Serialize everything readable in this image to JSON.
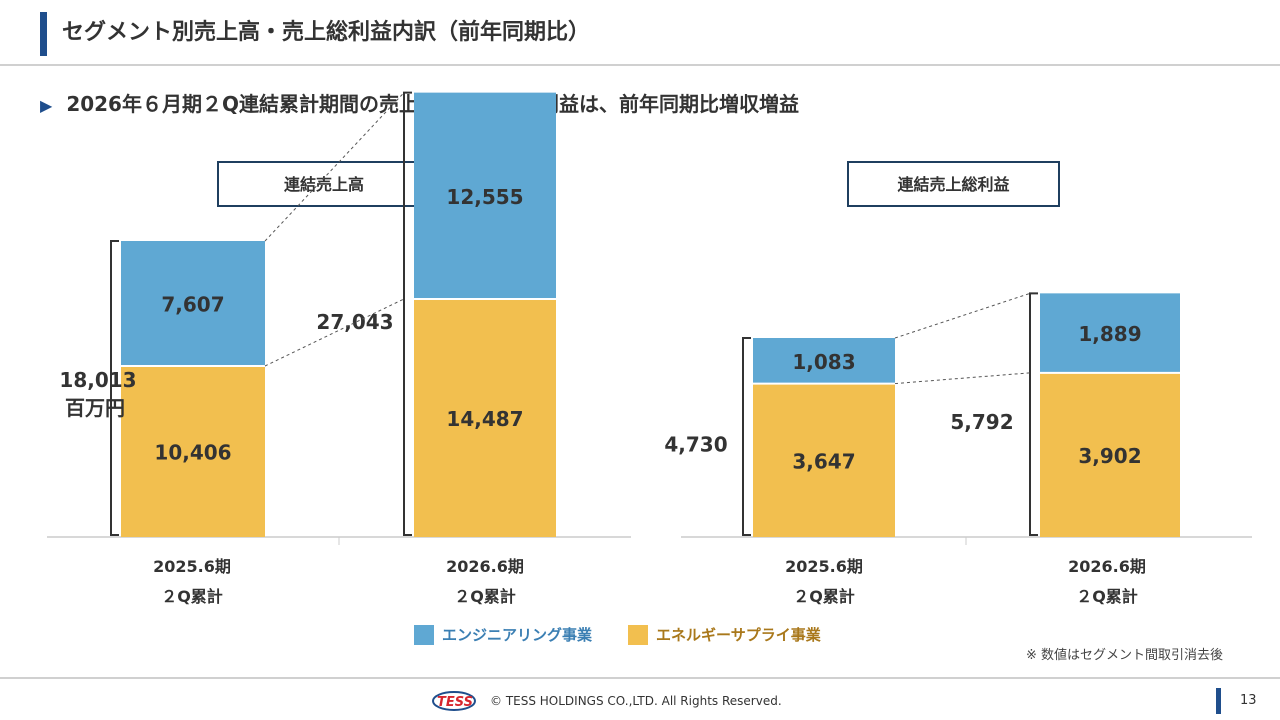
{
  "header": {
    "title": "セグメント別売上高・売上総利益内訳（前年同期比）",
    "subtitle": "2026年６月期２Q連結累計期間の売上高及び売上総利益は、前年同期比増収増益"
  },
  "colors": {
    "engineering": "#5fa8d3",
    "energy": "#f2bf4f",
    "brand": "#1f4e8c",
    "box_border": "#1f3f5f"
  },
  "legend": {
    "engineering": "エンジニアリング事業",
    "energy": "エネルギーサプライ事業"
  },
  "note": "※ 数値はセグメント間取引消去後",
  "footer": {
    "logo_text": "TESS",
    "copyright": "© TESS HOLDINGS CO.,LTD. All Rights Reserved.",
    "page_number": "13"
  },
  "chart_data": [
    {
      "type": "bar",
      "stacked": true,
      "title": "連結売上高",
      "categories": [
        "2025.6期\n２Q累計",
        "2026.6期\n２Q累計"
      ],
      "series": [
        {
          "name": "エネルギーサプライ事業",
          "values": [
            10406,
            14487
          ]
        },
        {
          "name": "エンジニアリング事業",
          "values": [
            7607,
            12555
          ]
        }
      ],
      "totals": [
        18013,
        27043
      ],
      "total_labels": [
        "18,013",
        "27,043"
      ],
      "unit": "百万円",
      "value_labels": [
        [
          "10,406",
          "7,607"
        ],
        [
          "14,487",
          "12,555"
        ]
      ]
    },
    {
      "type": "bar",
      "stacked": true,
      "title": "連結売上総利益",
      "categories": [
        "2025.6期\n２Q累計",
        "2026.6期\n２Q累計"
      ],
      "series": [
        {
          "name": "エネルギーサプライ事業",
          "values": [
            3647,
            3902
          ]
        },
        {
          "name": "エンジニアリング事業",
          "values": [
            1083,
            1889
          ]
        }
      ],
      "totals": [
        4730,
        5792
      ],
      "total_labels": [
        "4,730",
        "5,792"
      ],
      "value_labels": [
        [
          "3,647",
          "1,083"
        ],
        [
          "3,902",
          "1,889"
        ]
      ]
    }
  ]
}
